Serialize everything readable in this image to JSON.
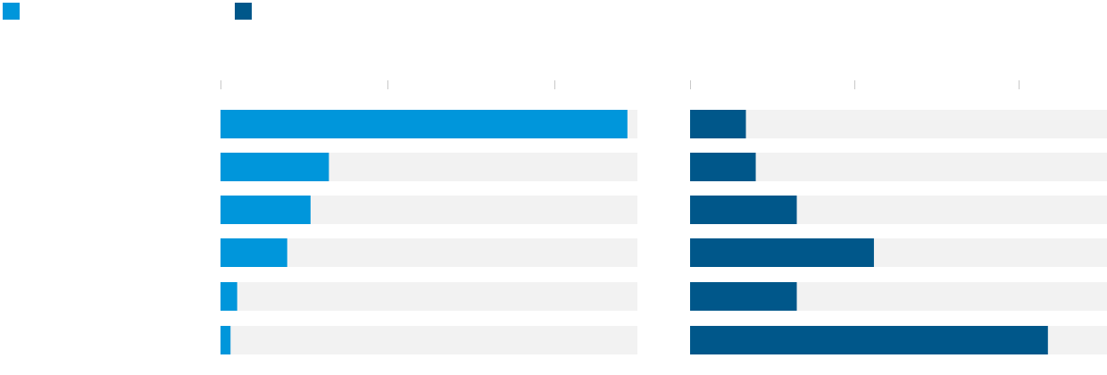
{
  "chart_data": [
    {
      "type": "bar",
      "orientation": "horizontal",
      "categories": [
        null,
        null,
        null,
        null,
        null,
        null
      ],
      "series": [
        {
          "color": "#0096db",
          "values": [
            2.44,
            0.65,
            0.54,
            0.4,
            0.1,
            0.06
          ]
        }
      ],
      "xlim": [
        0,
        2.5
      ],
      "xticks": [
        0,
        1,
        2
      ]
    },
    {
      "type": "bar",
      "orientation": "horizontal",
      "categories": [
        null,
        null,
        null,
        null,
        null,
        null
      ],
      "series": [
        {
          "color": "#00578a",
          "values": [
            0.34,
            0.4,
            0.65,
            1.12,
            0.65,
            2.18
          ]
        }
      ],
      "xlim": [
        0,
        2.54
      ],
      "xticks": [
        0,
        1,
        2
      ]
    }
  ]
}
